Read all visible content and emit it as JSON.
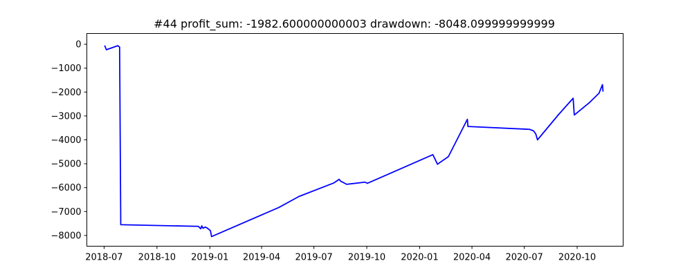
{
  "chart_data": {
    "type": "line",
    "title": "#44   profit_sum: -1982.600000000003 drawdown: -8048.099999999999",
    "xlabel": "",
    "ylabel": "",
    "x_tick_labels": [
      "2018-07",
      "2018-10",
      "2019-01",
      "2019-04",
      "2019-07",
      "2019-10",
      "2020-01",
      "2020-04",
      "2020-07",
      "2020-10"
    ],
    "y_tick_labels": [
      "0",
      "−1000",
      "−2000",
      "−3000",
      "−4000",
      "−5000",
      "−6000",
      "−7000",
      "−8000"
    ],
    "ylim": [
      -8450,
      450
    ],
    "xlim": [
      "2018-06-01",
      "2020-12-20"
    ],
    "grid": false,
    "series": [
      {
        "color": "#0000ff",
        "x": [
          "2018-07-02",
          "2018-07-05",
          "2018-07-25",
          "2018-07-28",
          "2018-07-30",
          "2018-12-12",
          "2018-12-16",
          "2018-12-18",
          "2018-12-20",
          "2018-12-24",
          "2018-12-28",
          "2019-01-02",
          "2019-01-04",
          "2019-05-01",
          "2019-06-05",
          "2019-08-05",
          "2019-08-14",
          "2019-08-16",
          "2019-08-27",
          "2019-09-28",
          "2019-10-02",
          "2020-01-24",
          "2020-02-01",
          "2020-02-20",
          "2020-03-24",
          "2020-03-25",
          "2020-07-10",
          "2020-07-17",
          "2020-07-21",
          "2020-07-24",
          "2020-08-29",
          "2020-09-24",
          "2020-09-26",
          "2020-10-22",
          "2020-11-08",
          "2020-11-14",
          "2020-11-15"
        ],
        "y": [
          -50,
          -230,
          -60,
          -120,
          -7550,
          -7620,
          -7720,
          -7600,
          -7700,
          -7650,
          -7700,
          -7800,
          -8048.1,
          -6830,
          -6370,
          -5800,
          -5650,
          -5720,
          -5860,
          -5770,
          -5820,
          -4620,
          -5020,
          -4700,
          -3140,
          -3440,
          -3560,
          -3620,
          -3750,
          -4000,
          -2960,
          -2260,
          -2960,
          -2450,
          -2050,
          -1690,
          -1982.6
        ]
      }
    ]
  }
}
